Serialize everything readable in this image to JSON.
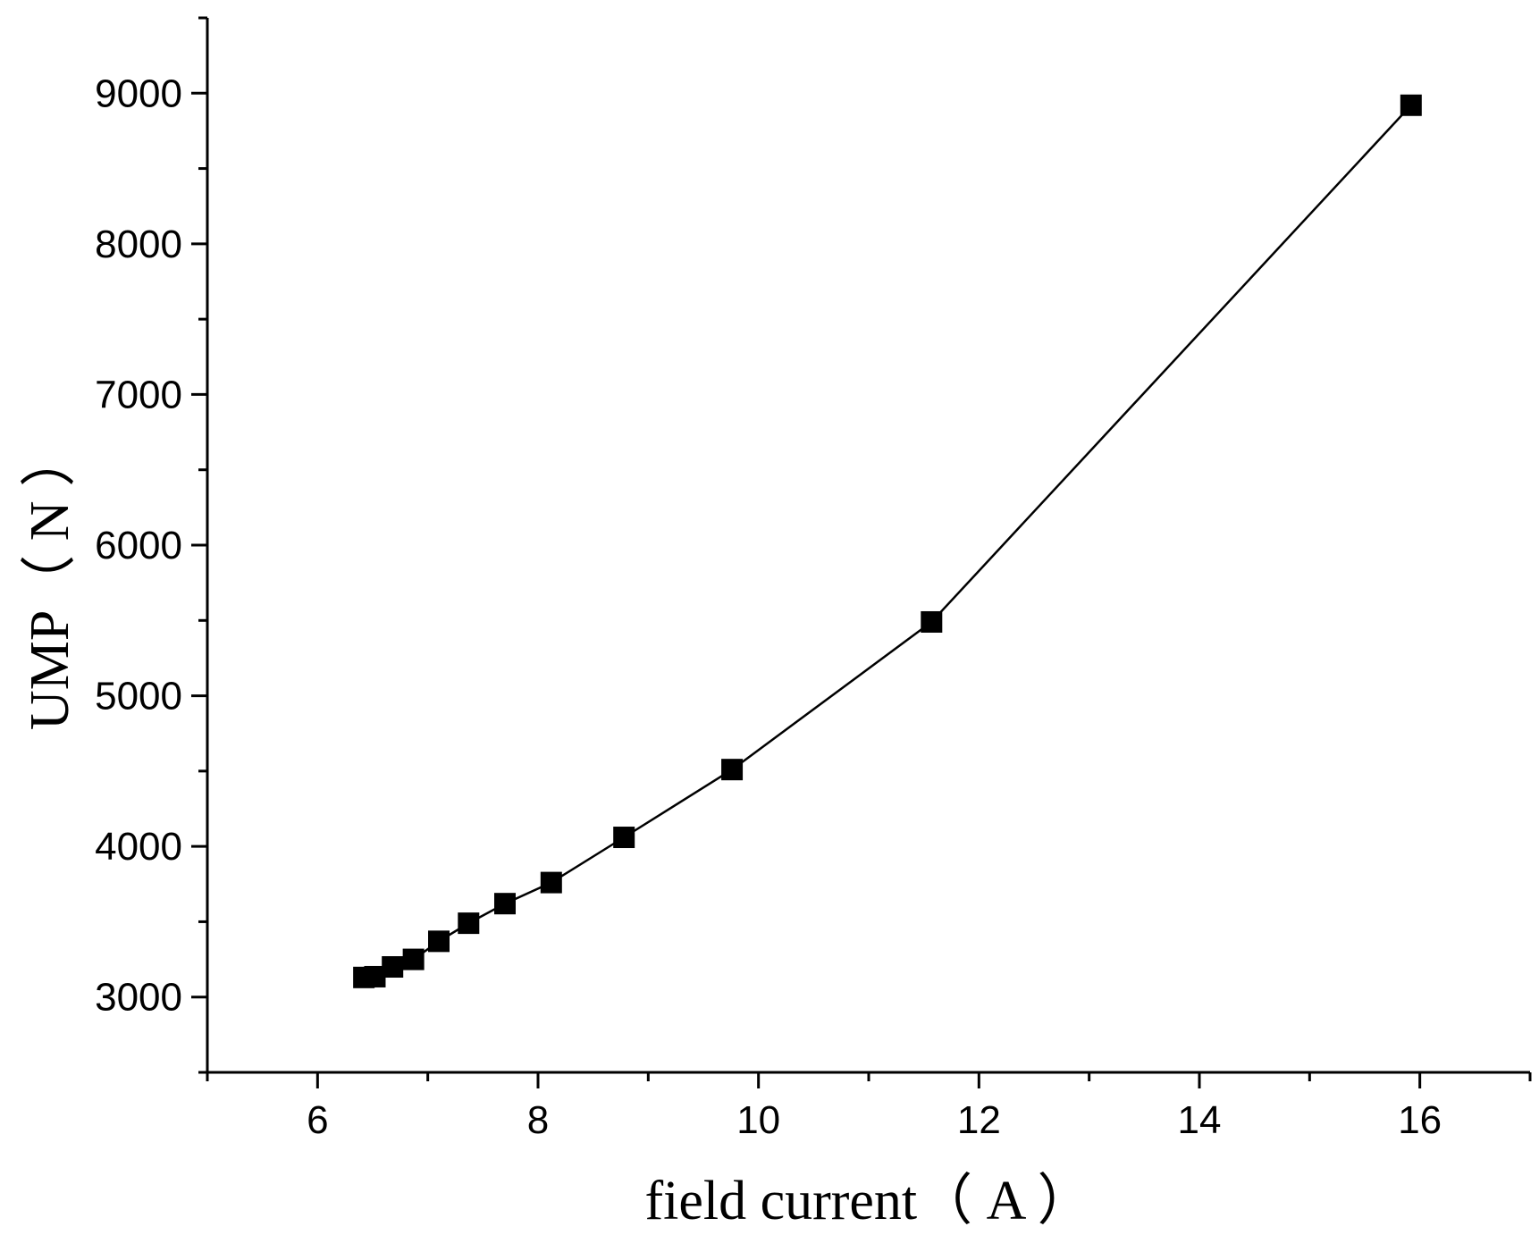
{
  "chart_data": {
    "type": "line",
    "title": "",
    "xlabel": "field current（ A ）",
    "ylabel": "UMP（ N ）",
    "xlim": [
      5,
      17
    ],
    "ylim": [
      2500,
      9500
    ],
    "x_ticks": [
      6,
      8,
      10,
      12,
      14,
      16
    ],
    "y_ticks": [
      3000,
      4000,
      5000,
      6000,
      7000,
      8000,
      9000
    ],
    "grid": false,
    "marker": "square",
    "series": [
      {
        "x": [
          6.42,
          6.52,
          6.68,
          6.87,
          7.1,
          7.37,
          7.7,
          8.12,
          8.78,
          9.76,
          11.57,
          15.92
        ],
        "y": [
          3130,
          3135,
          3200,
          3250,
          3370,
          3490,
          3620,
          3760,
          4060,
          4510,
          5490,
          8920
        ],
        "color": "#000000"
      }
    ]
  }
}
